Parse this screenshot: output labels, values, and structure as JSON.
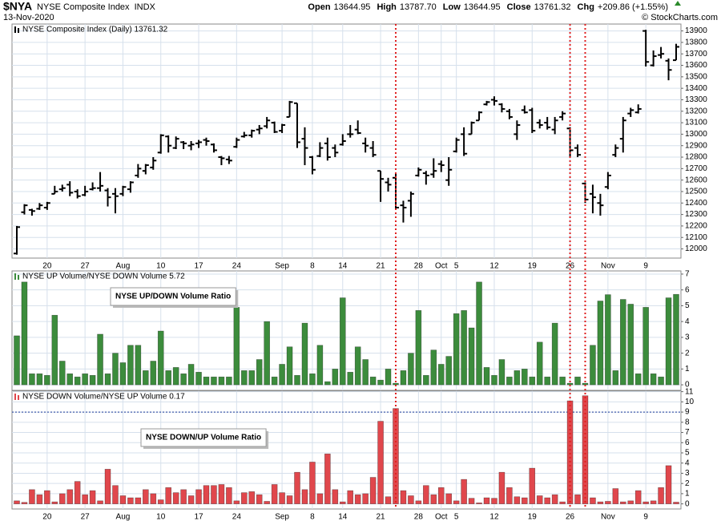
{
  "header": {
    "symbol": "$NYA",
    "name": "NYSE Composite Index",
    "exchange": "INDX",
    "date": "13-Nov-2020",
    "quote": [
      {
        "label": "Open",
        "value": "13644.95"
      },
      {
        "label": "High",
        "value": "13787.70"
      },
      {
        "label": "Low",
        "value": "13644.95"
      },
      {
        "label": "Close",
        "value": "13761.32"
      },
      {
        "label": "Chg",
        "value": "+209.86 (+1.55%)"
      }
    ],
    "credit": "© StockCharts.com"
  },
  "chart_data": [
    {
      "type": "ohlc",
      "title": "NYSE Composite Index (Daily) 13761.32",
      "color": "#000000",
      "categories": [
        null,
        null,
        null,
        null,
        "20",
        null,
        null,
        null,
        null,
        "27",
        null,
        null,
        null,
        null,
        "Aug",
        null,
        null,
        null,
        null,
        "10",
        null,
        null,
        null,
        null,
        "17",
        null,
        null,
        null,
        null,
        "24",
        null,
        null,
        null,
        null,
        null,
        "Sep",
        null,
        null,
        null,
        "8",
        null,
        null,
        null,
        "14",
        null,
        null,
        null,
        null,
        "21",
        null,
        null,
        null,
        null,
        "28",
        null,
        null,
        "Oct",
        null,
        "5",
        null,
        null,
        null,
        null,
        "12",
        null,
        null,
        null,
        null,
        "19",
        null,
        null,
        null,
        null,
        "26",
        null,
        null,
        null,
        null,
        "Nov",
        null,
        null,
        null,
        null,
        "9",
        null,
        null,
        null,
        null
      ],
      "open": [
        11960,
        12320,
        12340,
        12350,
        12360,
        12480,
        12520,
        12560,
        12500,
        12470,
        12520,
        12530,
        12510,
        12480,
        12480,
        12520,
        12640,
        12680,
        12710,
        12840,
        12980,
        12880,
        12930,
        12900,
        12920,
        12950,
        12910,
        12800,
        12780,
        12890,
        12980,
        12990,
        13040,
        13070,
        13100,
        13030,
        13150,
        13270,
        12960,
        12800,
        12810,
        12920,
        12880,
        12910,
        13000,
        13040,
        12920,
        12880,
        12680,
        12580,
        12620,
        12380,
        12420,
        12640,
        12660,
        12650,
        12740,
        12600,
        12850,
        13000,
        13000,
        13120,
        13260,
        13300,
        13260,
        13200,
        13000,
        13210,
        13210,
        13100,
        13100,
        13040,
        13150,
        13050,
        12880,
        12570,
        12480,
        12400,
        12540,
        12820,
        12960,
        13180,
        13190,
        13900,
        13600,
        13690,
        13640,
        13644.95
      ],
      "high": [
        12200,
        12390,
        12350,
        12400,
        12410,
        12550,
        12560,
        12590,
        12520,
        12550,
        12580,
        12670,
        12530,
        12530,
        12550,
        12590,
        12740,
        12740,
        12800,
        13000,
        12990,
        12980,
        12940,
        12940,
        12950,
        12970,
        12920,
        12810,
        12810,
        12970,
        13020,
        13040,
        13080,
        13150,
        13110,
        13090,
        13290,
        13270,
        13060,
        12810,
        12930,
        12970,
        12910,
        13000,
        13080,
        13120,
        12970,
        12940,
        12680,
        12620,
        12660,
        12420,
        12500,
        12710,
        12680,
        12790,
        12770,
        12800,
        12970,
        13060,
        13110,
        13200,
        13290,
        13330,
        13270,
        13220,
        13120,
        13250,
        13230,
        13130,
        13150,
        13150,
        13200,
        13060,
        12910,
        12580,
        12560,
        12480,
        12670,
        12910,
        13150,
        13230,
        13260,
        13910,
        13730,
        13760,
        13660,
        13787.7
      ],
      "low": [
        11950,
        12300,
        12290,
        12340,
        12340,
        12480,
        12500,
        12460,
        12440,
        12460,
        12510,
        12500,
        12370,
        12310,
        12460,
        12490,
        12620,
        12650,
        12690,
        12830,
        12840,
        12870,
        12870,
        12860,
        12880,
        12900,
        12840,
        12730,
        12740,
        12880,
        12970,
        12970,
        13000,
        13050,
        13010,
        13010,
        13150,
        12880,
        12730,
        12650,
        12800,
        12770,
        12800,
        12900,
        12970,
        13000,
        12840,
        12800,
        12410,
        12500,
        12340,
        12230,
        12280,
        12630,
        12560,
        12620,
        12670,
        12550,
        12840,
        12810,
        13000,
        13120,
        13250,
        13250,
        13190,
        13130,
        12950,
        13180,
        13010,
        13050,
        13040,
        13000,
        13120,
        12800,
        12800,
        12400,
        12310,
        12290,
        12520,
        12800,
        12840,
        13150,
        13180,
        13590,
        13590,
        13660,
        13470,
        13644.95
      ],
      "close": [
        12190,
        12380,
        12330,
        12380,
        12400,
        12500,
        12530,
        12490,
        12460,
        12500,
        12530,
        12550,
        12450,
        12460,
        12540,
        12580,
        12700,
        12730,
        12770,
        12990,
        12900,
        12960,
        12920,
        12910,
        12930,
        12940,
        12860,
        12790,
        12770,
        12950,
        12990,
        13030,
        13050,
        13120,
        13020,
        13080,
        13280,
        12930,
        12880,
        12690,
        12880,
        12800,
        12840,
        12940,
        13000,
        13010,
        12900,
        12820,
        12610,
        12560,
        12360,
        12360,
        12480,
        12690,
        12640,
        12680,
        12730,
        12690,
        12950,
        12830,
        13100,
        13190,
        13280,
        13290,
        13220,
        13150,
        13080,
        13190,
        13030,
        13080,
        13060,
        13120,
        13180,
        12860,
        12820,
        12430,
        12450,
        12380,
        12640,
        12880,
        13120,
        13210,
        13220,
        13630,
        13680,
        13700,
        13560,
        13761.32
      ],
      "ylim": [
        11920,
        13960
      ],
      "yticks": [
        12000,
        12100,
        12200,
        12300,
        12400,
        12500,
        12600,
        12700,
        12800,
        12900,
        13000,
        13100,
        13200,
        13300,
        13400,
        13500,
        13600,
        13700,
        13800,
        13900
      ],
      "grid": true,
      "marker_lines": [
        50,
        73,
        75
      ],
      "marker_color": "#e02020"
    },
    {
      "type": "bar",
      "title": "NYSE UP Volume/NYSE DOWN Volume 5.72",
      "annotation": "NYSE UP/DOWN Volume Ratio",
      "color": "#3c8c3c",
      "values": [
        3.1,
        6.5,
        0.7,
        0.7,
        0.6,
        4.4,
        1.5,
        0.7,
        0.5,
        0.7,
        0.6,
        3.2,
        0.7,
        2.0,
        1.4,
        2.5,
        2.5,
        0.9,
        1.5,
        3.4,
        0.9,
        1.1,
        0.7,
        1.3,
        0.8,
        0.5,
        0.5,
        0.5,
        0.5,
        4.9,
        0.9,
        0.9,
        1.6,
        4.0,
        0.5,
        1.3,
        2.4,
        0.6,
        3.9,
        0.7,
        2.5,
        0.2,
        1.0,
        5.5,
        0.8,
        2.4,
        1.6,
        0.5,
        0.3,
        1.0,
        0.1,
        0.9,
        2.0,
        4.7,
        0.6,
        2.2,
        1.3,
        1.8,
        4.5,
        4.7,
        3.6,
        6.5,
        1.1,
        0.6,
        1.6,
        0.5,
        0.9,
        1.0,
        0.5,
        2.7,
        0.5,
        3.9,
        0.5,
        0.1,
        0.5,
        0.1,
        2.5,
        5.3,
        5.7,
        0.9,
        5.4,
        5.1,
        0.7,
        4.9,
        0.7,
        0.5,
        5.5,
        5.72
      ],
      "ylim": [
        -0.35,
        7.2
      ],
      "yticks": [
        0,
        1,
        2,
        3,
        4,
        5,
        6,
        7
      ],
      "grid": true
    },
    {
      "type": "bar",
      "title": "NYSE DOWN Volume/NYSE UP Volume 0.17",
      "annotation": "NYSE DOWN/UP Volume Ratio",
      "color": "#e0474c",
      "categories": [
        null,
        null,
        null,
        null,
        "20",
        null,
        null,
        null,
        null,
        "27",
        null,
        null,
        null,
        null,
        "Aug",
        null,
        null,
        null,
        null,
        "10",
        null,
        null,
        null,
        null,
        "17",
        null,
        null,
        null,
        null,
        "24",
        null,
        null,
        null,
        null,
        null,
        "Sep",
        null,
        null,
        null,
        "8",
        null,
        null,
        null,
        "14",
        null,
        null,
        null,
        null,
        "21",
        null,
        null,
        null,
        null,
        "28",
        null,
        null,
        "Oct",
        null,
        "5",
        null,
        null,
        null,
        null,
        "12",
        null,
        null,
        null,
        null,
        "19",
        null,
        null,
        null,
        null,
        "26",
        null,
        null,
        null,
        null,
        "Nov",
        null,
        null,
        null,
        null,
        "9",
        null,
        null,
        null,
        null
      ],
      "values": [
        0.3,
        0.15,
        1.4,
        0.9,
        1.3,
        0.2,
        1.0,
        1.4,
        2.2,
        0.9,
        1.3,
        0.3,
        3.4,
        1.8,
        0.8,
        0.6,
        0.6,
        1.4,
        1.0,
        0.4,
        1.6,
        1.1,
        1.4,
        0.8,
        1.4,
        1.8,
        1.8,
        1.9,
        1.6,
        0.3,
        1.1,
        1.2,
        0.9,
        0.25,
        1.9,
        1.1,
        0.8,
        3.1,
        1.4,
        4.1,
        1.0,
        4.9,
        1.4,
        0.2,
        1.3,
        0.9,
        1.0,
        2.6,
        8.1,
        0.7,
        9.35,
        1.3,
        0.8,
        0.3,
        1.8,
        0.9,
        1.6,
        1.0,
        0.3,
        2.4,
        0.55,
        0.1,
        0.6,
        0.55,
        3.1,
        1.6,
        0.7,
        0.6,
        3.5,
        0.8,
        0.6,
        0.9,
        0.2,
        10.1,
        0.9,
        10.6,
        0.6,
        0.2,
        0.25,
        1.5,
        0.2,
        0.3,
        1.3,
        0.2,
        0.3,
        1.6,
        3.75,
        0.17
      ],
      "ylim": [
        -0.5,
        11.05
      ],
      "yticks": [
        0,
        1,
        2,
        3,
        4,
        5,
        6,
        7,
        8,
        9,
        10,
        11
      ],
      "grid": true,
      "reference_line": 9,
      "reference_color": "#1a3a9a"
    }
  ]
}
